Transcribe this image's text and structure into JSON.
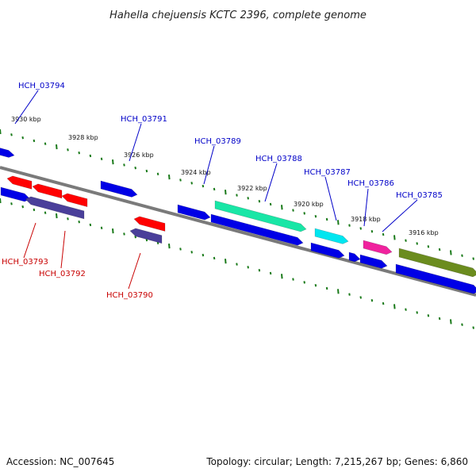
{
  "title": "Hahella chejuensis KCTC 2396, complete genome",
  "footer": {
    "accession": "Accession: NC_007645",
    "summary": "Topology: circular; Length: 7,215,267 bp; Genes: 6,860"
  },
  "colors": {
    "background": "#ffffff",
    "backbone": "#7a7a7a",
    "tick": "#1a7a1a",
    "forward_label": "#0000c8",
    "reverse_label": "#c80000",
    "leader": "#0000c8",
    "leader_reverse": "#c80000"
  },
  "scale_labels": [
    "3930 kbp",
    "3928 kbp",
    "3926 kbp",
    "3924 kbp",
    "3922 kbp",
    "3920 kbp",
    "3918 kbp",
    "3916 kbp"
  ],
  "forward_gene_labels": [
    "HCH_03794",
    "HCH_03791",
    "HCH_03789",
    "HCH_03788",
    "HCH_03787",
    "HCH_03786",
    "HCH_03785"
  ],
  "reverse_gene_labels": [
    "HCH_03793",
    "HCH_03792",
    "HCH_03790"
  ],
  "feature_colors": {
    "cds": "#0000e6",
    "gene_red": "#ff0000",
    "gene_purple": "#4a3f9a",
    "teal": "#19e6a6",
    "cyan": "#00e6f0",
    "magenta": "#f0229e",
    "olive": "#6b8c1e"
  }
}
